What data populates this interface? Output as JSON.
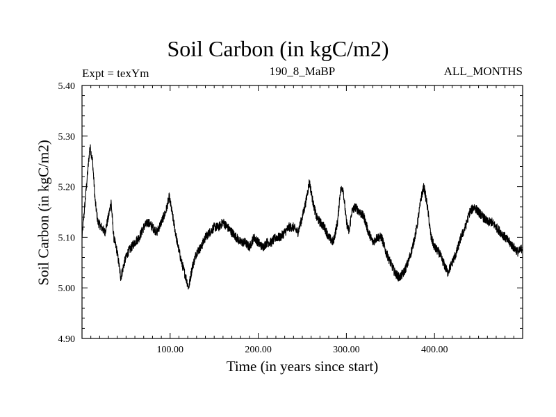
{
  "chart_data": {
    "type": "line",
    "title": "Soil Carbon (in kgC/m2)",
    "left_label": "Expt = texYm",
    "subtitle": "190_8_MaBP",
    "right_label": "ALL_MONTHS",
    "xlabel": "Time (in years since start)",
    "ylabel": "Soil Carbon (in kgC/m2)",
    "xlim": [
      0,
      500
    ],
    "ylim": [
      4.9,
      5.4
    ],
    "x_ticks": [
      100,
      200,
      300,
      400
    ],
    "x_tick_labels": [
      "100.00",
      "200.00",
      "300.00",
      "400.00"
    ],
    "y_ticks": [
      4.9,
      5.0,
      5.1,
      5.2,
      5.3,
      5.4
    ],
    "y_tick_labels": [
      "4.90",
      "5.00",
      "5.10",
      "5.20",
      "5.30",
      "5.40"
    ],
    "grid": false,
    "line_color": "#000000",
    "noise_amplitude": 0.018,
    "series": [
      {
        "x": [
          0,
          3,
          6,
          9,
          12,
          15,
          18,
          22,
          26,
          30,
          33,
          36,
          40,
          44,
          48,
          52,
          56,
          60,
          65,
          70,
          75,
          80,
          85,
          90,
          95,
          99,
          103,
          108,
          113,
          118,
          121,
          125,
          130,
          135,
          140,
          145,
          150,
          155,
          160,
          165,
          170,
          175,
          180,
          185,
          190,
          195,
          200,
          205,
          210,
          215,
          220,
          225,
          230,
          235,
          240,
          245,
          250,
          254,
          258,
          262,
          266,
          270,
          275,
          280,
          285,
          290,
          293,
          296,
          300,
          303,
          306,
          310,
          315,
          320,
          325,
          330,
          335,
          340,
          345,
          350,
          355,
          360,
          365,
          370,
          375,
          380,
          385,
          388,
          392,
          396,
          400,
          405,
          410,
          415,
          420,
          425,
          430,
          435,
          440,
          445,
          450,
          455,
          460,
          465,
          470,
          475,
          480,
          485,
          490,
          495,
          500
        ],
        "y": [
          5.1,
          5.16,
          5.22,
          5.28,
          5.25,
          5.17,
          5.13,
          5.12,
          5.11,
          5.14,
          5.17,
          5.1,
          5.07,
          5.02,
          5.05,
          5.07,
          5.08,
          5.09,
          5.1,
          5.12,
          5.13,
          5.12,
          5.11,
          5.13,
          5.15,
          5.18,
          5.14,
          5.09,
          5.05,
          5.02,
          5.0,
          5.04,
          5.07,
          5.08,
          5.1,
          5.11,
          5.12,
          5.12,
          5.13,
          5.12,
          5.11,
          5.1,
          5.09,
          5.09,
          5.08,
          5.1,
          5.09,
          5.08,
          5.09,
          5.09,
          5.1,
          5.1,
          5.11,
          5.12,
          5.12,
          5.11,
          5.14,
          5.17,
          5.21,
          5.17,
          5.14,
          5.13,
          5.12,
          5.1,
          5.09,
          5.13,
          5.19,
          5.2,
          5.13,
          5.11,
          5.15,
          5.16,
          5.15,
          5.14,
          5.11,
          5.09,
          5.1,
          5.1,
          5.07,
          5.05,
          5.03,
          5.02,
          5.03,
          5.05,
          5.08,
          5.12,
          5.18,
          5.2,
          5.16,
          5.1,
          5.08,
          5.07,
          5.05,
          5.03,
          5.05,
          5.07,
          5.1,
          5.12,
          5.15,
          5.16,
          5.15,
          5.14,
          5.13,
          5.13,
          5.12,
          5.11,
          5.1,
          5.09,
          5.08,
          5.07,
          5.08
        ]
      }
    ]
  }
}
